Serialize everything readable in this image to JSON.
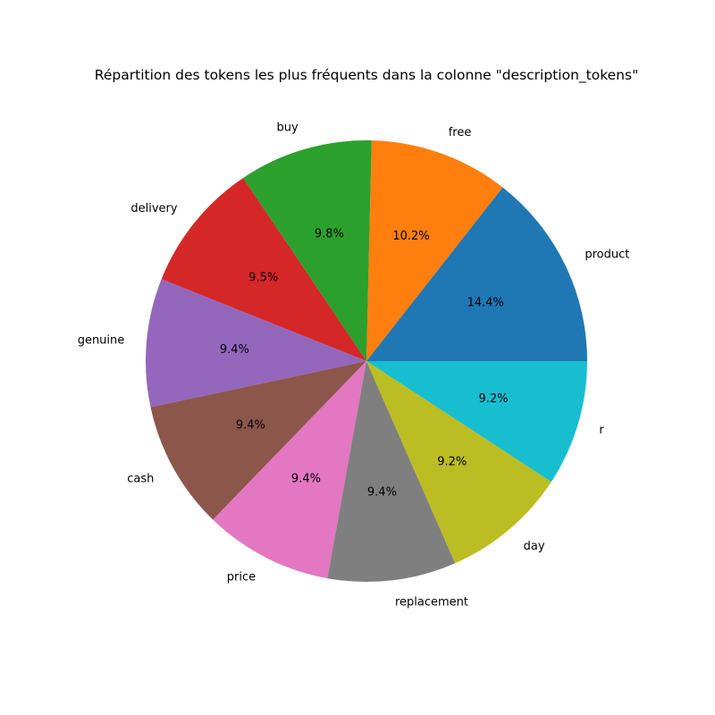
{
  "chart_data": {
    "type": "pie",
    "title": "Répartition des tokens les plus fréquents dans la colonne \"description_tokens\"",
    "start_angle_deg": 0,
    "direction": "counterclockwise",
    "slices": [
      {
        "label": "product",
        "value": 14.4,
        "pct_label": "14.4%",
        "color": "#1f77b4"
      },
      {
        "label": "free",
        "value": 10.2,
        "pct_label": "10.2%",
        "color": "#ff7f0e"
      },
      {
        "label": "buy",
        "value": 9.8,
        "pct_label": "9.8%",
        "color": "#2ca02c"
      },
      {
        "label": "delivery",
        "value": 9.5,
        "pct_label": "9.5%",
        "color": "#d62728"
      },
      {
        "label": "genuine",
        "value": 9.4,
        "pct_label": "9.4%",
        "color": "#9467bd"
      },
      {
        "label": "cash",
        "value": 9.4,
        "pct_label": "9.4%",
        "color": "#8c564b"
      },
      {
        "label": "price",
        "value": 9.4,
        "pct_label": "9.4%",
        "color": "#e377c2"
      },
      {
        "label": "replacement",
        "value": 9.4,
        "pct_label": "9.4%",
        "color": "#7f7f7f"
      },
      {
        "label": "day",
        "value": 9.2,
        "pct_label": "9.2%",
        "color": "#bcbd22"
      },
      {
        "label": "r",
        "value": 9.2,
        "pct_label": "9.2%",
        "color": "#17becf"
      }
    ]
  }
}
